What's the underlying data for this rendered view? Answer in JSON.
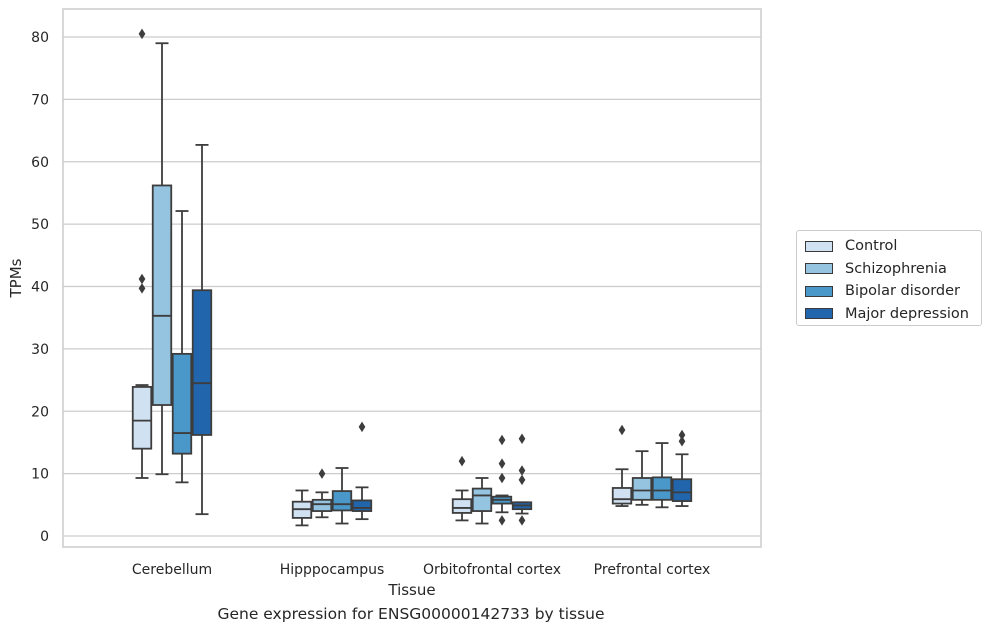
{
  "caption": "Gene expression for ENSG00000142733 by tissue",
  "chart_data": {
    "type": "box",
    "xlabel": "Tissue",
    "ylabel": "TPMs",
    "ylim": [
      -2,
      84.5
    ],
    "yticks": [
      0,
      10,
      20,
      30,
      40,
      50,
      60,
      70,
      80
    ],
    "grid": "horizontal",
    "legend_position": "right",
    "categories": [
      "Cerebellum",
      "Hipppocampus",
      "Orbitofrontal cortex",
      "Prefrontal cortex"
    ],
    "series": [
      {
        "name": "Control",
        "color": "#d0e1f2",
        "boxes": [
          {
            "whisker_low": 9.3,
            "q1": 14.0,
            "median": 18.5,
            "q3": 23.9,
            "whisker_high": 24.2,
            "outliers": [
              39.7,
              41.2,
              80.5
            ]
          },
          {
            "whisker_low": 1.7,
            "q1": 2.9,
            "median": 4.3,
            "q3": 5.5,
            "whisker_high": 7.3,
            "outliers": []
          },
          {
            "whisker_low": 2.5,
            "q1": 3.7,
            "median": 4.5,
            "q3": 5.9,
            "whisker_high": 7.3,
            "outliers": [
              12.0
            ]
          },
          {
            "whisker_low": 4.8,
            "q1": 5.2,
            "median": 5.9,
            "q3": 7.7,
            "whisker_high": 10.7,
            "outliers": [
              17.0
            ]
          }
        ]
      },
      {
        "name": "Schizophrenia",
        "color": "#94c4df",
        "boxes": [
          {
            "whisker_low": 9.9,
            "q1": 21.0,
            "median": 35.3,
            "q3": 56.2,
            "whisker_high": 79.0,
            "outliers": []
          },
          {
            "whisker_low": 3.0,
            "q1": 4.0,
            "median": 5.1,
            "q3": 5.8,
            "whisker_high": 7.0,
            "outliers": [
              10.0
            ]
          },
          {
            "whisker_low": 2.0,
            "q1": 4.0,
            "median": 6.5,
            "q3": 7.6,
            "whisker_high": 9.3,
            "outliers": []
          },
          {
            "whisker_low": 5.0,
            "q1": 5.8,
            "median": 7.3,
            "q3": 9.3,
            "whisker_high": 13.6,
            "outliers": []
          }
        ]
      },
      {
        "name": "Bipolar disorder",
        "color": "#4a98c9",
        "boxes": [
          {
            "whisker_low": 8.6,
            "q1": 13.2,
            "median": 16.5,
            "q3": 29.2,
            "whisker_high": 52.1,
            "outliers": []
          },
          {
            "whisker_low": 2.0,
            "q1": 4.1,
            "median": 5.1,
            "q3": 7.2,
            "whisker_high": 10.9,
            "outliers": []
          },
          {
            "whisker_low": 3.8,
            "q1": 5.2,
            "median": 5.8,
            "q3": 6.3,
            "whisker_high": 6.5,
            "outliers": [
              2.5,
              9.3,
              11.6,
              15.4
            ]
          },
          {
            "whisker_low": 4.6,
            "q1": 5.8,
            "median": 7.3,
            "q3": 9.4,
            "whisker_high": 14.9,
            "outliers": []
          }
        ]
      },
      {
        "name": "Major depression",
        "color": "#2166ac",
        "boxes": [
          {
            "whisker_low": 3.5,
            "q1": 16.2,
            "median": 24.5,
            "q3": 39.4,
            "whisker_high": 62.7,
            "outliers": []
          },
          {
            "whisker_low": 2.7,
            "q1": 4.0,
            "median": 4.5,
            "q3": 5.7,
            "whisker_high": 7.8,
            "outliers": [
              17.5
            ]
          },
          {
            "whisker_low": 3.6,
            "q1": 4.3,
            "median": 4.9,
            "q3": 5.4,
            "whisker_high": 5.4,
            "outliers": [
              2.5,
              9.0,
              10.5,
              15.6
            ]
          },
          {
            "whisker_low": 4.8,
            "q1": 5.6,
            "median": 7.0,
            "q3": 9.1,
            "whisker_high": 13.1,
            "outliers": [
              15.2,
              16.2
            ]
          }
        ]
      }
    ]
  }
}
